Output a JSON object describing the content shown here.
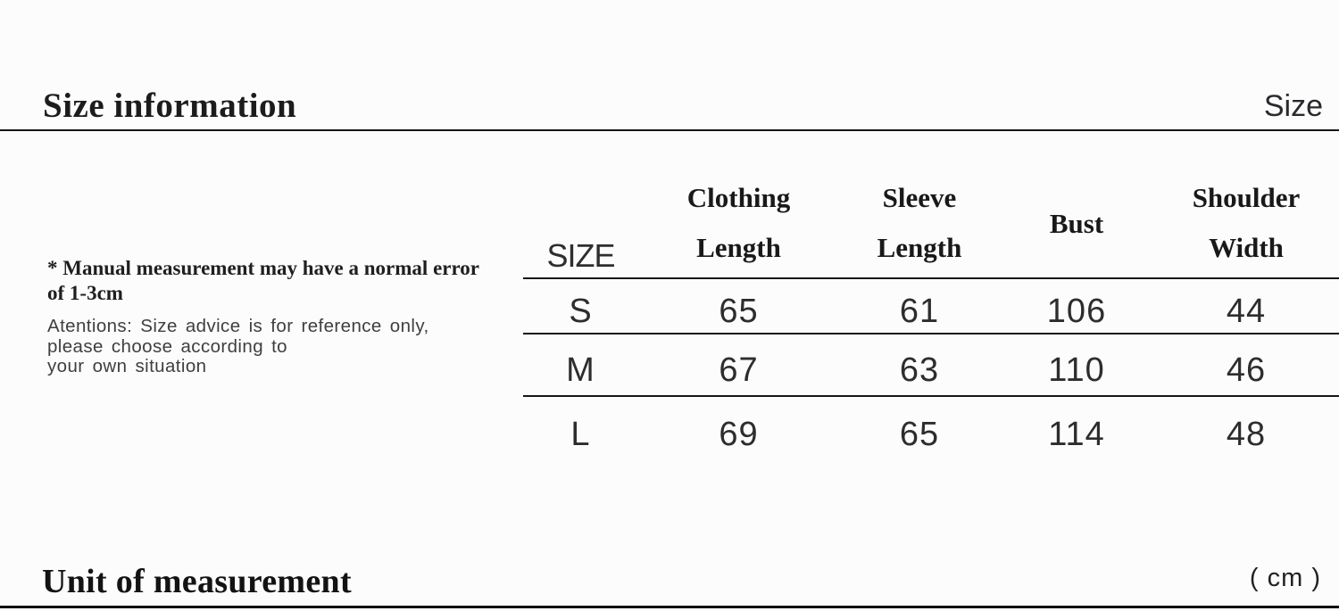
{
  "meta": {
    "background": "#fcfcfc",
    "rule_color": "#161616",
    "text_dark": "#1c1c1c",
    "text_mid": "#2d2d2d",
    "text_gray": "#3f3f3f"
  },
  "header": {
    "title": "Size information",
    "right_label": "Size"
  },
  "notes": {
    "bold_lines": [
      "* Manual measurement may have a normal error",
      "of 1-3cm"
    ],
    "attention_lines": [
      "Atentions: Size advice is for reference only,",
      "please choose according to",
      "your own situation"
    ]
  },
  "size_table": {
    "headers": [
      {
        "line1": "SIZE"
      },
      {
        "line1": "Clothing",
        "line2": "Length"
      },
      {
        "line1": "Sleeve",
        "line2": "Length"
      },
      {
        "line1": "Bust"
      },
      {
        "line1": "Shoulder",
        "line2": "Width"
      }
    ],
    "rows": [
      {
        "size": "S",
        "values": [
          "65",
          "61",
          "106",
          "44"
        ]
      },
      {
        "size": "M",
        "values": [
          "67",
          "63",
          "110",
          "46"
        ]
      },
      {
        "size": "L",
        "values": [
          "69",
          "65",
          "114",
          "48"
        ]
      }
    ],
    "unit": "cm"
  },
  "footer": {
    "title": "Unit of measurement",
    "unit": "( cm )"
  }
}
